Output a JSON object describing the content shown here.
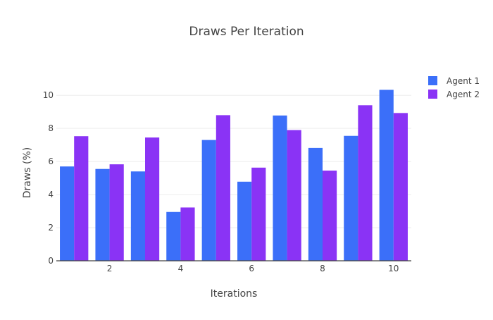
{
  "chart_data": {
    "type": "bar",
    "title": "Draws Per Iteration",
    "xlabel": "Iterations",
    "ylabel": "Draws (%)",
    "x": [
      1,
      2,
      3,
      4,
      5,
      6,
      7,
      8,
      9,
      10
    ],
    "x_ticks": [
      2,
      4,
      6,
      8,
      10
    ],
    "xlim": [
      0.5,
      10.5
    ],
    "ylim": [
      0,
      11.5
    ],
    "y_ticks": [
      0,
      2,
      4,
      6,
      8,
      10
    ],
    "grid": true,
    "legend_position": "top-right",
    "series": [
      {
        "name": "Agent 1",
        "color": "#3b6ff9",
        "values": [
          5.7,
          5.55,
          5.4,
          2.95,
          7.3,
          4.78,
          8.78,
          6.82,
          7.55,
          10.33
        ]
      },
      {
        "name": "Agent 2",
        "color": "#8a33f5",
        "values": [
          7.53,
          5.83,
          7.45,
          3.22,
          8.8,
          5.63,
          7.9,
          5.45,
          9.4,
          8.93
        ]
      }
    ]
  }
}
